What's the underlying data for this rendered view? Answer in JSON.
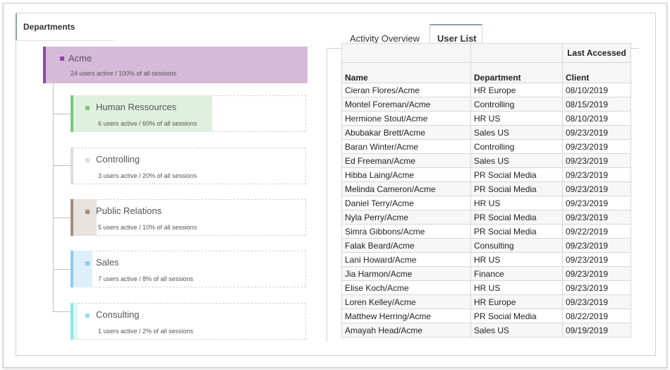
{
  "panel": {
    "title": "Departments"
  },
  "tree": {
    "root": {
      "name": "Acme",
      "stat": "24 users active / 100% of all sessions",
      "color": "#8e44ad",
      "bg": "#d7b9d9"
    },
    "children": [
      {
        "name": "Human Ressources",
        "stat": "6 users active / 60% of all sessions",
        "color": "#7cc67c",
        "bg": "#dff0df",
        "fill": 0.6
      },
      {
        "name": "Controlling",
        "stat": "3 users active / 20% of all sessions",
        "color": "#dcdcdc",
        "bg": "#f1f1f1",
        "fill": 0.2
      },
      {
        "name": "Public Relations",
        "stat": "5 users active / 10% of all sessions",
        "color": "#a58b7d",
        "bg": "#e8e2df",
        "fill": 0.1
      },
      {
        "name": "Sales",
        "stat": "7 users active / 8% of all sessions",
        "color": "#8ec9ee",
        "bg": "#ddeffb",
        "fill": 0.08
      },
      {
        "name": "Consulting",
        "stat": "1 users active / 2% of all sessions",
        "color": "#8ee3e8",
        "bg": "#dff7f8",
        "fill": 0.02
      }
    ]
  },
  "tabs": [
    {
      "label": "Activity Overview",
      "active": false
    },
    {
      "label": "User List",
      "active": true
    }
  ],
  "table": {
    "group_header": "Last Accessed",
    "columns": [
      "Name",
      "Department",
      "Client"
    ],
    "rows": [
      [
        "Cieran Flores/Acme",
        "HR Europe",
        "08/10/2019"
      ],
      [
        "Montel Foreman/Acme",
        "Controlling",
        "08/15/2019"
      ],
      [
        "Hermione Stout/Acme",
        "HR US",
        "08/10/2019"
      ],
      [
        "Abubakar Brett/Acme",
        "Sales US",
        "09/23/2019"
      ],
      [
        "Baran Winter/Acme",
        "Controlling",
        "09/23/2019"
      ],
      [
        "Ed Freeman/Acme",
        "Sales US",
        "09/23/2019"
      ],
      [
        "Hibba Laing/Acme",
        "PR Social Media",
        "09/23/2019"
      ],
      [
        "Melinda Cameron/Acme",
        "PR Social Media",
        "09/23/2019"
      ],
      [
        "Daniel Terry/Acme",
        "HR US",
        "09/23/2019"
      ],
      [
        "Nyla Perry/Acme",
        "PR Social Media",
        "09/23/2019"
      ],
      [
        "Simra Gibbons/Acme",
        "PR Social Media",
        "09/22/2019"
      ],
      [
        "Falak Beard/Acme",
        "Consulting",
        "09/23/2019"
      ],
      [
        "Lani Howard/Acme",
        "HR US",
        "09/23/2019"
      ],
      [
        "Jia Harmon/Acme",
        "Finance",
        "09/23/2019"
      ],
      [
        "Elise Koch/Acme",
        "HR US",
        "09/23/2019"
      ],
      [
        "Loren Kelley/Acme",
        "HR Europe",
        "09/23/2019"
      ],
      [
        "Matthew Herring/Acme",
        "PR Social Media",
        "08/22/2019"
      ],
      [
        "Amayah Head/Acme",
        "Sales US",
        "09/19/2019"
      ]
    ]
  }
}
